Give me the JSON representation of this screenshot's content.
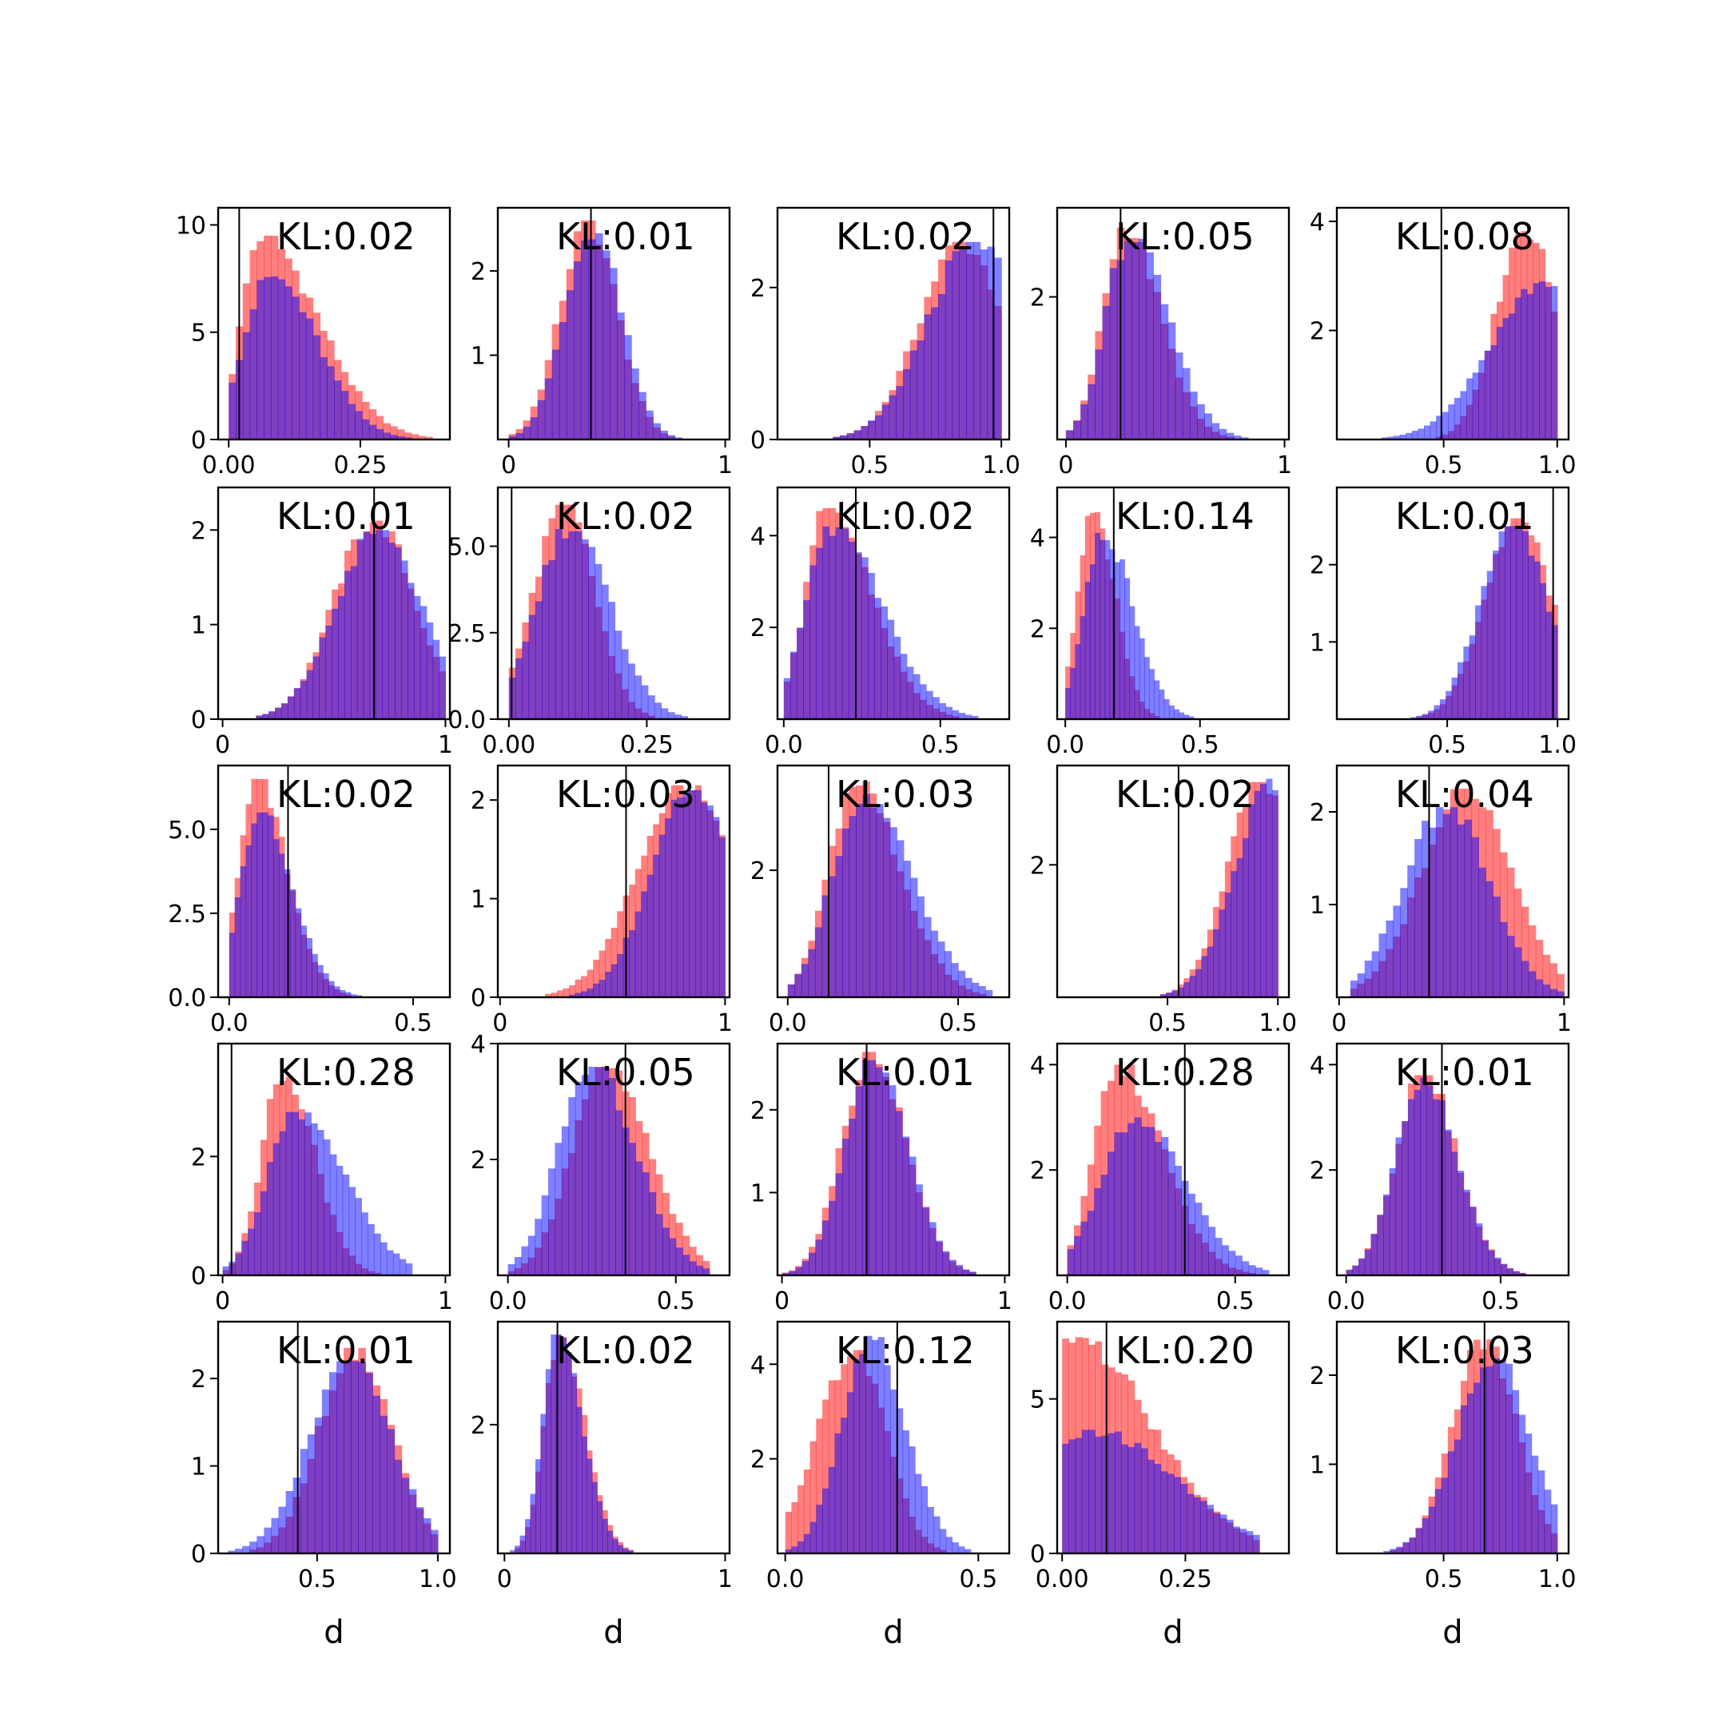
{
  "figure": {
    "rows": 5,
    "cols": 5,
    "xlabel": "d"
  },
  "colors": {
    "series_a": "#ff0000",
    "series_b": "#0000ff",
    "overlap": "#7f35bf",
    "marker_line": "#000000",
    "axes": "#000000"
  },
  "chart_data": [
    {
      "type": "bar",
      "kl": "KL:0.02",
      "xlim": [
        -0.02,
        0.42
      ],
      "ylim": [
        0,
        10.8
      ],
      "xticks": [
        0,
        0.25
      ],
      "xtick_labels": [
        "0.00",
        "0.25"
      ],
      "yticks": [
        0,
        5,
        10
      ],
      "ytick_labels": [
        "0",
        "5",
        "10"
      ],
      "marker": 0.02,
      "shape": {
        "a": [
          0.06,
          0.06,
          0.6,
          1.8
        ],
        "b": [
          0.08,
          0.08,
          0.65,
          1.1
        ]
      },
      "peak": {
        "a": 9.5,
        "b": 7.6
      },
      "range": [
        0,
        0.4
      ]
    },
    {
      "type": "bar",
      "kl": "KL:0.01",
      "xlim": [
        -0.05,
        1.02
      ],
      "ylim": [
        0,
        2.75
      ],
      "xticks": [
        0,
        1
      ],
      "xtick_labels": [
        "0",
        "1"
      ],
      "yticks": [
        1,
        2
      ],
      "ytick_labels": [
        "1",
        "2"
      ],
      "marker": 0.38,
      "shape": {
        "a": [
          0.37,
          0.13,
          1,
          1
        ],
        "b": [
          0.39,
          0.13,
          1,
          1
        ]
      },
      "peak": {
        "a": 2.6,
        "b": 2.5
      },
      "range": [
        0,
        1
      ]
    },
    {
      "type": "bar",
      "kl": "KL:0.02",
      "xlim": [
        0.15,
        1.03
      ],
      "ylim": [
        0,
        3.05
      ],
      "xticks": [
        0.5,
        1
      ],
      "xtick_labels": [
        "0.5",
        "1.0"
      ],
      "yticks": [
        0,
        2
      ],
      "ytick_labels": [
        "0",
        "2"
      ],
      "marker": 0.97,
      "shape": {
        "a": [
          0.85,
          0.16,
          1,
          1
        ],
        "b": [
          0.9,
          0.18,
          1,
          1
        ]
      },
      "peak": {
        "a": 2.6,
        "b": 2.6
      },
      "range": [
        0.2,
        1
      ]
    },
    {
      "type": "bar",
      "kl": "KL:0.05",
      "xlim": [
        -0.04,
        1.02
      ],
      "ylim": [
        0,
        3.25
      ],
      "xticks": [
        0,
        1
      ],
      "xtick_labels": [
        "0",
        "1"
      ],
      "yticks": [
        2
      ],
      "ytick_labels": [
        "2"
      ],
      "marker": 0.25,
      "shape": {
        "a": [
          0.27,
          0.1,
          1,
          1.6
        ],
        "b": [
          0.29,
          0.11,
          1,
          1.6
        ]
      },
      "peak": {
        "a": 3.0,
        "b": 2.85
      },
      "range": [
        0,
        1
      ]
    },
    {
      "type": "bar",
      "kl": "KL:0.08",
      "xlim": [
        0.03,
        1.05
      ],
      "ylim": [
        0,
        4.25
      ],
      "xticks": [
        0.5,
        1
      ],
      "xtick_labels": [
        "0.5",
        "1.0"
      ],
      "yticks": [
        2,
        4
      ],
      "ytick_labels": [
        "2",
        "4"
      ],
      "marker": 0.49,
      "shape": {
        "a": [
          0.86,
          0.13,
          1,
          1
        ],
        "b": [
          0.95,
          0.24,
          1,
          1
        ]
      },
      "peak": {
        "a": 3.9,
        "b": 2.9
      },
      "range": [
        0.2,
        1
      ]
    },
    {
      "type": "bar",
      "kl": "KL:0.01",
      "xlim": [
        -0.02,
        1.02
      ],
      "ylim": [
        0,
        2.45
      ],
      "xticks": [
        0,
        1
      ],
      "xtick_labels": [
        "0",
        "1"
      ],
      "yticks": [
        0,
        1,
        2
      ],
      "ytick_labels": [
        "0",
        "1",
        "2"
      ],
      "marker": 0.68,
      "shape": {
        "a": [
          0.68,
          0.18,
          1,
          1
        ],
        "b": [
          0.7,
          0.19,
          1,
          1
        ]
      },
      "peak": {
        "a": 2.1,
        "b": 2.0
      },
      "range": [
        0.15,
        1
      ]
    },
    {
      "type": "bar",
      "kl": "KL:0.02",
      "xlim": [
        -0.02,
        0.4
      ],
      "ylim": [
        0,
        6.7
      ],
      "xticks": [
        0,
        0.25
      ],
      "xtick_labels": [
        "0.00",
        "0.25"
      ],
      "yticks": [
        0,
        2.5,
        5
      ],
      "ytick_labels": [
        "0.0",
        "2.5",
        "5.0"
      ],
      "marker": 0.005,
      "shape": {
        "a": [
          0.1,
          0.055,
          1,
          1
        ],
        "b": [
          0.11,
          0.06,
          1,
          1.2
        ]
      },
      "peak": {
        "a": 6.2,
        "b": 5.6
      },
      "range": [
        0,
        0.36
      ]
    },
    {
      "type": "bar",
      "kl": "KL:0.02",
      "xlim": [
        -0.02,
        0.72
      ],
      "ylim": [
        0,
        5.05
      ],
      "xticks": [
        0,
        0.5
      ],
      "xtick_labels": [
        "0.0",
        "0.5"
      ],
      "yticks": [
        2,
        4
      ],
      "ytick_labels": [
        "2",
        "4"
      ],
      "marker": 0.23,
      "shape": {
        "a": [
          0.14,
          0.07,
          1,
          2
        ],
        "b": [
          0.15,
          0.08,
          1,
          2
        ]
      },
      "peak": {
        "a": 4.6,
        "b": 4.2
      },
      "range": [
        0,
        0.62
      ]
    },
    {
      "type": "bar",
      "kl": "KL:0.14",
      "xlim": [
        -0.03,
        0.83
      ],
      "ylim": [
        0,
        5.1
      ],
      "xticks": [
        0,
        0.5
      ],
      "xtick_labels": [
        "0.0",
        "0.5"
      ],
      "yticks": [
        2,
        4
      ],
      "ytick_labels": [
        "2",
        "4"
      ],
      "marker": 0.18,
      "shape": {
        "a": [
          0.1,
          0.055,
          1,
          1.5
        ],
        "b": [
          0.14,
          0.07,
          1,
          1.6
        ]
      },
      "peak": {
        "a": 4.7,
        "b": 4.1
      },
      "range": [
        0,
        0.55
      ]
    },
    {
      "type": "bar",
      "kl": "KL:0.01",
      "xlim": [
        0.0,
        1.05
      ],
      "ylim": [
        0,
        3.0
      ],
      "xticks": [
        0.5,
        1
      ],
      "xtick_labels": [
        "0.5",
        "1.0"
      ],
      "yticks": [
        1,
        2
      ],
      "ytick_labels": [
        "1",
        "2"
      ],
      "marker": 0.98,
      "shape": {
        "a": [
          0.82,
          0.15,
          1,
          1
        ],
        "b": [
          0.8,
          0.15,
          1,
          1
        ]
      },
      "peak": {
        "a": 2.6,
        "b": 2.5
      },
      "range": [
        0.2,
        1
      ]
    },
    {
      "type": "bar",
      "kl": "KL:0.02",
      "xlim": [
        -0.03,
        0.6
      ],
      "ylim": [
        0,
        6.9
      ],
      "xticks": [
        0,
        0.5
      ],
      "xtick_labels": [
        "0.0",
        "0.5"
      ],
      "yticks": [
        0,
        2.5,
        5
      ],
      "ytick_labels": [
        "0.0",
        "2.5",
        "5.0"
      ],
      "marker": 0.16,
      "shape": {
        "a": [
          0.07,
          0.045,
          1,
          1.9
        ],
        "b": [
          0.08,
          0.05,
          1,
          1.8
        ]
      },
      "peak": {
        "a": 6.5,
        "b": 5.5
      },
      "range": [
        0,
        0.45
      ]
    },
    {
      "type": "bar",
      "kl": "KL:0.03",
      "xlim": [
        -0.01,
        1.02
      ],
      "ylim": [
        0,
        2.35
      ],
      "xticks": [
        0,
        1
      ],
      "xtick_labels": [
        "0",
        "1"
      ],
      "yticks": [
        0,
        1,
        2
      ],
      "ytick_labels": [
        "0",
        "1",
        "2"
      ],
      "marker": 0.56,
      "shape": {
        "a": [
          0.82,
          0.21,
          1,
          1
        ],
        "b": [
          0.85,
          0.18,
          1,
          1
        ]
      },
      "peak": {
        "a": 2.15,
        "b": 2.1
      },
      "range": [
        0.2,
        1
      ]
    },
    {
      "type": "bar",
      "kl": "KL:0.03",
      "xlim": [
        -0.03,
        0.65
      ],
      "ylim": [
        0,
        3.65
      ],
      "xticks": [
        0,
        0.5
      ],
      "xtick_labels": [
        "0.0",
        "0.5"
      ],
      "yticks": [
        2
      ],
      "ytick_labels": [
        "2"
      ],
      "marker": 0.12,
      "shape": {
        "a": [
          0.2,
          0.08,
          1,
          1.6
        ],
        "b": [
          0.22,
          0.09,
          1,
          1.6
        ]
      },
      "peak": {
        "a": 3.4,
        "b": 3.2
      },
      "range": [
        0,
        0.6
      ]
    },
    {
      "type": "bar",
      "kl": "KL:0.02",
      "xlim": [
        0.0,
        1.05
      ],
      "ylim": [
        0,
        3.5
      ],
      "xticks": [
        0.5,
        1
      ],
      "xtick_labels": [
        "0.5",
        "1.0"
      ],
      "yticks": [
        2
      ],
      "ytick_labels": [
        "2"
      ],
      "marker": 0.55,
      "shape": {
        "a": [
          0.92,
          0.15,
          1,
          1
        ],
        "b": [
          0.98,
          0.17,
          1,
          1
        ]
      },
      "peak": {
        "a": 3.25,
        "b": 3.3
      },
      "range": [
        0.2,
        1
      ]
    },
    {
      "type": "bar",
      "kl": "KL:0.04",
      "xlim": [
        -0.01,
        1.02
      ],
      "ylim": [
        0,
        2.5
      ],
      "xticks": [
        0,
        1
      ],
      "xtick_labels": [
        "0",
        "1"
      ],
      "yticks": [
        1,
        2
      ],
      "ytick_labels": [
        "1",
        "2"
      ],
      "marker": 0.4,
      "shape": {
        "a": [
          0.57,
          0.2,
          1,
          1
        ],
        "b": [
          0.48,
          0.19,
          1,
          1
        ]
      },
      "peak": {
        "a": 2.25,
        "b": 2.05
      },
      "range": [
        0.05,
        1
      ]
    },
    {
      "type": "bar",
      "kl": "KL:0.28",
      "xlim": [
        -0.02,
        1.02
      ],
      "ylim": [
        0,
        3.9
      ],
      "xticks": [
        0,
        1
      ],
      "xtick_labels": [
        "0",
        "1"
      ],
      "yticks": [
        0,
        2
      ],
      "ytick_labels": [
        "0",
        "2"
      ],
      "marker": 0.04,
      "shape": {
        "a": [
          0.27,
          0.095,
          1,
          1.5
        ],
        "b": [
          0.33,
          0.13,
          1,
          1.7
        ]
      },
      "peak": {
        "a": 3.4,
        "b": 2.75
      },
      "range": [
        0,
        0.85
      ]
    },
    {
      "type": "bar",
      "kl": "KL:0.05",
      "xlim": [
        -0.03,
        0.66
      ],
      "ylim": [
        0,
        4.0
      ],
      "xticks": [
        0,
        0.5
      ],
      "xtick_labels": [
        "0.0",
        "0.5"
      ],
      "yticks": [
        2,
        4
      ],
      "ytick_labels": [
        "2",
        "4"
      ],
      "marker": 0.35,
      "shape": {
        "a": [
          0.29,
          0.1,
          1,
          1.3
        ],
        "b": [
          0.25,
          0.1,
          1,
          1.3
        ]
      },
      "peak": {
        "a": 3.6,
        "b": 3.6
      },
      "range": [
        0,
        0.6
      ]
    },
    {
      "type": "bar",
      "kl": "KL:0.01",
      "xlim": [
        -0.02,
        1.02
      ],
      "ylim": [
        0,
        2.8
      ],
      "xticks": [
        0,
        1
      ],
      "xtick_labels": [
        "0",
        "1"
      ],
      "yticks": [
        1,
        2
      ],
      "ytick_labels": [
        "1",
        "2"
      ],
      "marker": 0.38,
      "shape": {
        "a": [
          0.4,
          0.13,
          1,
          1.2
        ],
        "b": [
          0.41,
          0.13,
          1,
          1.2
        ]
      },
      "peak": {
        "a": 2.7,
        "b": 2.6
      },
      "range": [
        0,
        0.9
      ]
    },
    {
      "type": "bar",
      "kl": "KL:0.28",
      "xlim": [
        -0.03,
        0.66
      ],
      "ylim": [
        0,
        4.4
      ],
      "xticks": [
        0,
        0.5
      ],
      "xtick_labels": [
        "0.0",
        "0.5"
      ],
      "yticks": [
        2,
        4
      ],
      "ytick_labels": [
        "2",
        "4"
      ],
      "marker": 0.35,
      "shape": {
        "a": [
          0.15,
          0.07,
          1,
          1.9
        ],
        "b": [
          0.2,
          0.1,
          1,
          1.5
        ]
      },
      "peak": {
        "a": 4.0,
        "b": 3.0
      },
      "range": [
        0,
        0.6
      ]
    },
    {
      "type": "bar",
      "kl": "KL:0.01",
      "xlim": [
        -0.03,
        0.72
      ],
      "ylim": [
        0,
        4.4
      ],
      "xticks": [
        0,
        0.5
      ],
      "xtick_labels": [
        "0.0",
        "0.5"
      ],
      "yticks": [
        2,
        4
      ],
      "ytick_labels": [
        "2",
        "4"
      ],
      "marker": 0.31,
      "shape": {
        "a": [
          0.25,
          0.09,
          1,
          1.2
        ],
        "b": [
          0.25,
          0.09,
          1,
          1.2
        ]
      },
      "peak": {
        "a": 3.8,
        "b": 3.75
      },
      "range": [
        0,
        0.6
      ]
    },
    {
      "type": "bar",
      "kl": "KL:0.01",
      "xlim": [
        0.09,
        1.05
      ],
      "ylim": [
        0,
        2.65
      ],
      "xticks": [
        0.5,
        1
      ],
      "xtick_labels": [
        "0.5",
        "1.0"
      ],
      "yticks": [
        0,
        1,
        2
      ],
      "ytick_labels": [
        "0",
        "1",
        "2"
      ],
      "marker": 0.42,
      "shape": {
        "a": [
          0.66,
          0.15,
          1,
          1
        ],
        "b": [
          0.64,
          0.17,
          1,
          1
        ]
      },
      "peak": {
        "a": 2.35,
        "b": 2.2
      },
      "range": [
        0.1,
        1
      ]
    },
    {
      "type": "bar",
      "kl": "KL:0.02",
      "xlim": [
        -0.03,
        1.02
      ],
      "ylim": [
        0,
        3.6
      ],
      "xticks": [
        0,
        1
      ],
      "xtick_labels": [
        "0",
        "1"
      ],
      "yticks": [
        2
      ],
      "ytick_labels": [
        "2"
      ],
      "marker": 0.24,
      "shape": {
        "a": [
          0.25,
          0.07,
          1,
          1.6
        ],
        "b": [
          0.24,
          0.07,
          1,
          1.6
        ]
      },
      "peak": {
        "a": 3.4,
        "b": 3.4
      },
      "range": [
        0,
        0.7
      ]
    },
    {
      "type": "bar",
      "kl": "KL:0.12",
      "xlim": [
        -0.02,
        0.58
      ],
      "ylim": [
        0,
        4.9
      ],
      "xticks": [
        0,
        0.5
      ],
      "xtick_labels": [
        "0.0",
        "0.5"
      ],
      "yticks": [
        2,
        4
      ],
      "ytick_labels": [
        "2",
        "4"
      ],
      "marker": 0.29,
      "shape": {
        "a": [
          0.18,
          0.08,
          1.2,
          1
        ],
        "b": [
          0.22,
          0.075,
          1,
          1.2
        ]
      },
      "peak": {
        "a": 4.3,
        "b": 4.6
      },
      "range": [
        0,
        0.48
      ]
    },
    {
      "type": "bar",
      "kl": "KL:0.20",
      "xlim": [
        -0.01,
        0.46
      ],
      "ylim": [
        0,
        7.5
      ],
      "xticks": [
        0,
        0.25
      ],
      "xtick_labels": [
        "0.00",
        "0.25"
      ],
      "yticks": [
        0,
        5
      ],
      "ytick_labels": [
        "0",
        "5"
      ],
      "marker": 0.09,
      "shape": {
        "a": [
          0.02,
          0.04,
          1,
          4
        ],
        "b": [
          0.06,
          0.09,
          1,
          1.9
        ]
      },
      "peak": {
        "a": 7.0,
        "b": 4.0
      },
      "range": [
        0,
        0.4
      ]
    },
    {
      "type": "bar",
      "kl": "KL:0.03",
      "xlim": [
        0.03,
        1.05
      ],
      "ylim": [
        0,
        2.6
      ],
      "xticks": [
        0.5,
        1
      ],
      "xtick_labels": [
        "0.5",
        "1.0"
      ],
      "yticks": [
        1,
        2
      ],
      "ytick_labels": [
        "1",
        "2"
      ],
      "marker": 0.68,
      "shape": {
        "a": [
          0.68,
          0.14,
          1,
          1
        ],
        "b": [
          0.72,
          0.16,
          1,
          1
        ]
      },
      "peak": {
        "a": 2.4,
        "b": 2.2
      },
      "range": [
        0.15,
        1
      ]
    }
  ]
}
